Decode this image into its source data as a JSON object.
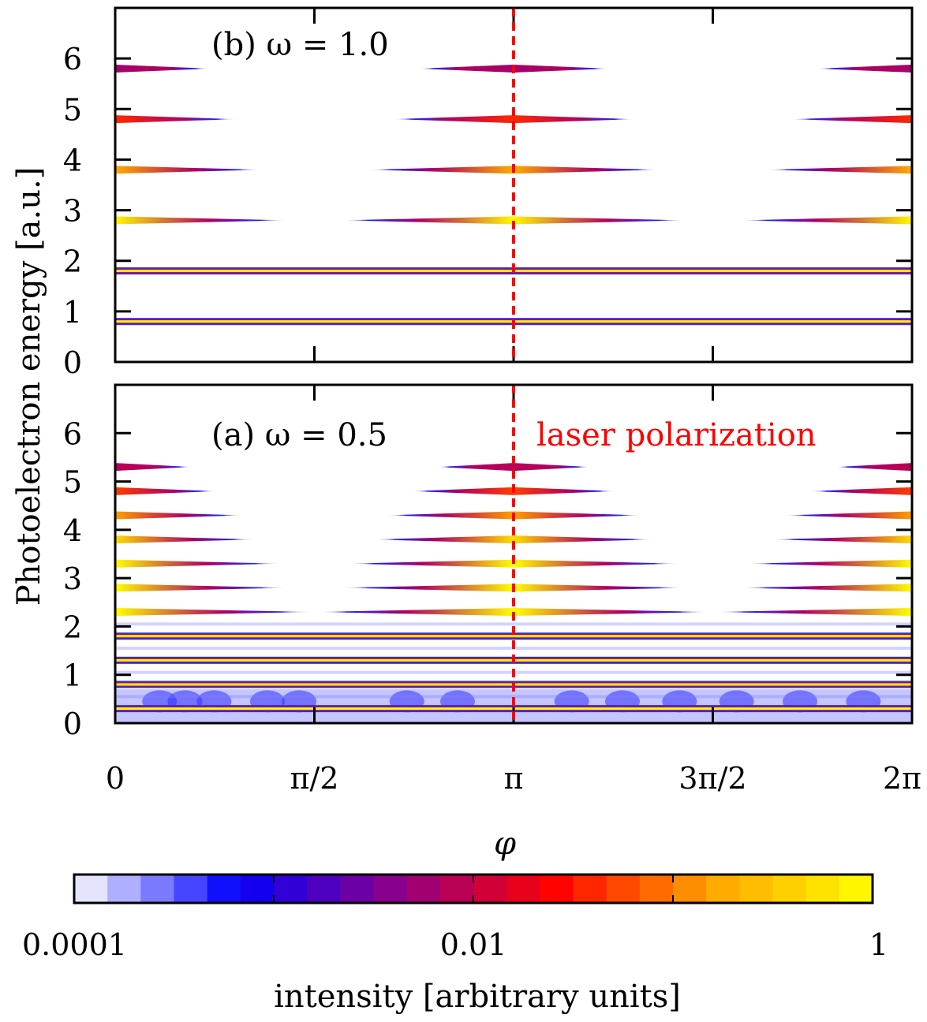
{
  "chart_data": {
    "type": "heatmap",
    "xlabel": "φ",
    "ylabel": "Photoelectron energy [a.u.]",
    "x_range": [
      0,
      6.2832
    ],
    "y_range": [
      0,
      7
    ],
    "x_ticks": [
      {
        "value": 0,
        "label": "0"
      },
      {
        "value": 1.5708,
        "label": "π/2"
      },
      {
        "value": 3.1416,
        "label": "π"
      },
      {
        "value": 4.7124,
        "label": "3π/2"
      },
      {
        "value": 6.2832,
        "label": "2π"
      }
    ],
    "y_ticks": [
      {
        "value": 0,
        "label": "0"
      },
      {
        "value": 1,
        "label": "1"
      },
      {
        "value": 2,
        "label": "2"
      },
      {
        "value": 3,
        "label": "3"
      },
      {
        "value": 4,
        "label": "4"
      },
      {
        "value": 5,
        "label": "5"
      },
      {
        "value": 6,
        "label": "6"
      }
    ],
    "polarization_line": {
      "x": 3.1416,
      "label": "laser polarization",
      "color": "#ff0000",
      "style": "dashed"
    },
    "colorbar": {
      "label": "intensity [arbitrary units]",
      "scale": "log",
      "range": [
        0.0001,
        1
      ],
      "ticks": [
        {
          "value": 0.0001,
          "label": "0.0001"
        },
        {
          "value": 0.01,
          "label": "0.01"
        },
        {
          "value": 1,
          "label": "1"
        }
      ],
      "colors": [
        "#ffffff",
        "#0000ff",
        "#8b008b",
        "#ff0000",
        "#ffa500",
        "#ffff00"
      ]
    },
    "panels": [
      {
        "id": "b",
        "label": "(b) ω = 1.0",
        "omega": 1.0,
        "bands": [
          {
            "energy": 0.8,
            "half_width": 3.1416,
            "intensity": 1.0
          },
          {
            "energy": 1.8,
            "half_width": 3.1416,
            "intensity": 0.6
          },
          {
            "energy": 2.8,
            "half_width": 1.35,
            "intensity": 0.9
          },
          {
            "energy": 3.8,
            "half_width": 1.15,
            "intensity": 0.18
          },
          {
            "energy": 4.8,
            "half_width": 0.95,
            "intensity": 0.04
          },
          {
            "energy": 5.8,
            "half_width": 0.75,
            "intensity": 0.006
          }
        ]
      },
      {
        "id": "a",
        "label": "(a) ω = 0.5",
        "omega": 0.5,
        "bands": [
          {
            "energy": 0.3,
            "half_width": 3.1416,
            "intensity": 1.0
          },
          {
            "energy": 0.8,
            "half_width": 3.1416,
            "intensity": 1.0
          },
          {
            "energy": 1.3,
            "half_width": 3.1416,
            "intensity": 1.0
          },
          {
            "energy": 1.8,
            "half_width": 3.1416,
            "intensity": 1.0
          },
          {
            "energy": 2.3,
            "half_width": 1.55,
            "intensity": 1.0
          },
          {
            "energy": 2.8,
            "half_width": 1.35,
            "intensity": 1.0
          },
          {
            "energy": 3.3,
            "half_width": 1.3,
            "intensity": 1.0
          },
          {
            "energy": 3.8,
            "half_width": 1.1,
            "intensity": 0.5
          },
          {
            "energy": 4.3,
            "half_width": 1.0,
            "intensity": 0.15
          },
          {
            "energy": 4.8,
            "half_width": 0.8,
            "intensity": 0.05
          },
          {
            "energy": 5.3,
            "half_width": 0.6,
            "intensity": 0.008
          }
        ]
      }
    ]
  }
}
